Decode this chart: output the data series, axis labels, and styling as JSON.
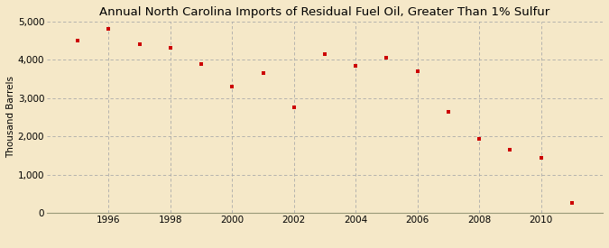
{
  "title": "Annual North Carolina Imports of Residual Fuel Oil, Greater Than 1% Sulfur",
  "ylabel": "Thousand Barrels",
  "background_color": "#f5e8c8",
  "plot_background_color": "#f5e8c8",
  "marker_color": "#cc0000",
  "years": [
    1995,
    1996,
    1997,
    1998,
    1999,
    2000,
    2001,
    2002,
    2003,
    2004,
    2005,
    2006,
    2007,
    2008,
    2009,
    2010,
    2011
  ],
  "values": [
    4500,
    4810,
    4400,
    4310,
    3890,
    3310,
    3660,
    2760,
    4150,
    3840,
    4050,
    3700,
    2650,
    1940,
    1640,
    1450,
    250
  ],
  "ylim": [
    0,
    5000
  ],
  "yticks": [
    0,
    1000,
    2000,
    3000,
    4000,
    5000
  ],
  "xlim": [
    1994.0,
    2012.0
  ],
  "xticks": [
    1996,
    1998,
    2000,
    2002,
    2004,
    2006,
    2008,
    2010
  ],
  "grid_color": "#aaaaaa",
  "title_fontsize": 9.5,
  "label_fontsize": 7.5,
  "tick_fontsize": 7.5,
  "source_fontsize": 6.5
}
